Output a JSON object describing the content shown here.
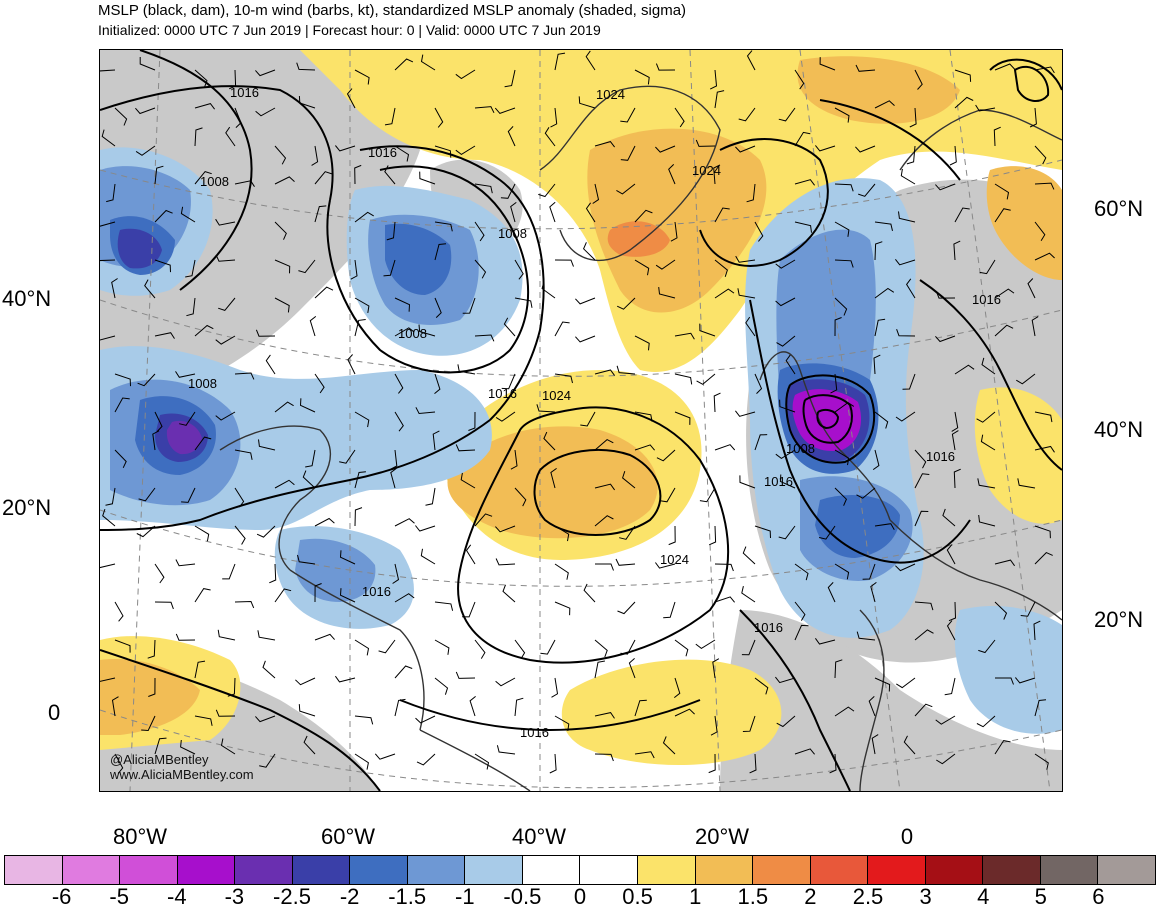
{
  "title": "MSLP (black, dam), 10-m wind (barbs, kt), standardized MSLP anomaly (shaded, sigma)",
  "subtitle": "Initialized: 0000 UTC 7 Jun 2019 | Forecast hour: 0 | Valid: 0000 UTC 7 Jun 2019",
  "credits": {
    "twitter": "@AliciaMBentley",
    "website": "www.AliciaMBentley.com"
  },
  "lat_labels_left": [
    "40°N",
    "20°N",
    "0"
  ],
  "lat_labels_right": [
    "60°N",
    "40°N",
    "20°N"
  ],
  "lon_labels": [
    "80°W",
    "60°W",
    "40°W",
    "20°W",
    "0"
  ],
  "contour_labels": [
    "1016",
    "1016",
    "1008",
    "1008",
    "1008",
    "1008",
    "1024",
    "1024",
    "1016",
    "1024",
    "1016",
    "1008",
    "1016",
    "1016",
    "1016",
    "1024",
    "1016",
    "1016",
    "1016"
  ],
  "colorbar": {
    "labels": [
      "-6",
      "-5",
      "-4",
      "-3",
      "-2.5",
      "-2",
      "-1.5",
      "-1",
      "-0.5",
      "0",
      "0.5",
      "1",
      "1.5",
      "2",
      "2.5",
      "3",
      "4",
      "5",
      "6"
    ],
    "colors": [
      "#e8b6e4",
      "#e07be0",
      "#d04fd8",
      "#a70fcc",
      "#6a2fb0",
      "#3a3fa8",
      "#3e6ec0",
      "#6e98d4",
      "#a8cbe8",
      "#ffffff",
      "#ffffff",
      "#fbe36a",
      "#f2bd55",
      "#ef8c45",
      "#e8583a",
      "#e31a1c",
      "#a50f15",
      "#6b2a2a",
      "#726664",
      "#a39a98"
    ]
  },
  "map": {
    "colors": {
      "gray_land": "#c9c9c9",
      "blue_light": "#a8cbe8",
      "blue_mid": "#6e98d4",
      "blue_dark": "#3e6ec0",
      "blue_deep": "#3a3fa8",
      "purple": "#a70fcc",
      "yellow": "#fbe36a",
      "orange": "#f2bd55",
      "orange_dark": "#ef8c45"
    }
  }
}
